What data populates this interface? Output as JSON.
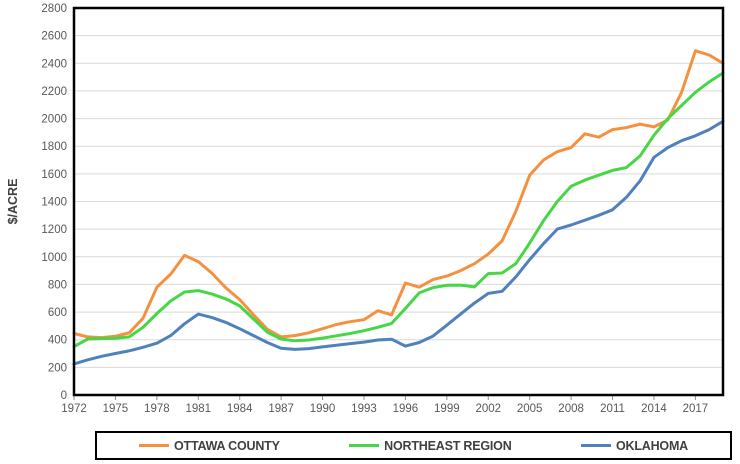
{
  "chart_data": {
    "type": "line",
    "title": "",
    "xlabel": "",
    "ylabel": "$/ACRE",
    "ylim": [
      0,
      2800
    ],
    "y_ticks": [
      0,
      200,
      400,
      600,
      800,
      1000,
      1200,
      1400,
      1600,
      1800,
      2000,
      2200,
      2400,
      2600,
      2800
    ],
    "x_ticks": [
      1972,
      1975,
      1978,
      1981,
      1984,
      1987,
      1990,
      1993,
      1996,
      1999,
      2002,
      2005,
      2008,
      2011,
      2014,
      2017
    ],
    "x": [
      1972,
      1973,
      1974,
      1975,
      1976,
      1977,
      1978,
      1979,
      1980,
      1981,
      1982,
      1983,
      1984,
      1985,
      1986,
      1987,
      1988,
      1989,
      1990,
      1991,
      1992,
      1993,
      1994,
      1995,
      1996,
      1997,
      1998,
      1999,
      2000,
      2001,
      2002,
      2003,
      2004,
      2005,
      2006,
      2007,
      2008,
      2009,
      2010,
      2011,
      2012,
      2013,
      2014,
      2015,
      2016,
      2017,
      2018,
      2019
    ],
    "grid": "horizontal",
    "legend_position": "bottom",
    "series": [
      {
        "name": "OTTAWA COUNTY",
        "color": "#F5913E",
        "values": [
          445,
          420,
          415,
          425,
          450,
          555,
          780,
          875,
          1010,
          965,
          880,
          775,
          690,
          580,
          475,
          420,
          430,
          450,
          480,
          510,
          530,
          545,
          610,
          580,
          810,
          780,
          835,
          860,
          900,
          950,
          1020,
          1115,
          1330,
          1590,
          1700,
          1760,
          1790,
          1890,
          1865,
          1920,
          1935,
          1960,
          1940,
          1990,
          2190,
          2490,
          2460,
          2400
        ]
      },
      {
        "name": "NORTHEAST REGION",
        "color": "#46D646",
        "values": [
          350,
          405,
          408,
          410,
          420,
          490,
          590,
          680,
          745,
          755,
          730,
          695,
          645,
          550,
          455,
          405,
          392,
          398,
          412,
          428,
          445,
          465,
          490,
          518,
          626,
          739,
          777,
          794,
          795,
          782,
          878,
          883,
          951,
          1100,
          1260,
          1400,
          1510,
          1555,
          1590,
          1625,
          1645,
          1730,
          1880,
          2000,
          2095,
          2190,
          2265,
          2330
        ]
      },
      {
        "name": "OKLAHOMA",
        "color": "#4F81BD",
        "values": [
          225,
          255,
          280,
          300,
          320,
          345,
          375,
          430,
          515,
          585,
          560,
          525,
          480,
          430,
          380,
          338,
          330,
          336,
          348,
          360,
          372,
          383,
          398,
          404,
          354,
          380,
          426,
          505,
          585,
          665,
          735,
          750,
          855,
          980,
          1095,
          1200,
          1230,
          1265,
          1300,
          1340,
          1430,
          1550,
          1720,
          1790,
          1840,
          1875,
          1920,
          1980
        ]
      }
    ]
  },
  "style": {
    "gridline_color": "#d9d9d9",
    "axis_border_color": "#000000",
    "tick_label_color": "#595959",
    "axis_title_color": "#404040",
    "background": "#ffffff"
  }
}
